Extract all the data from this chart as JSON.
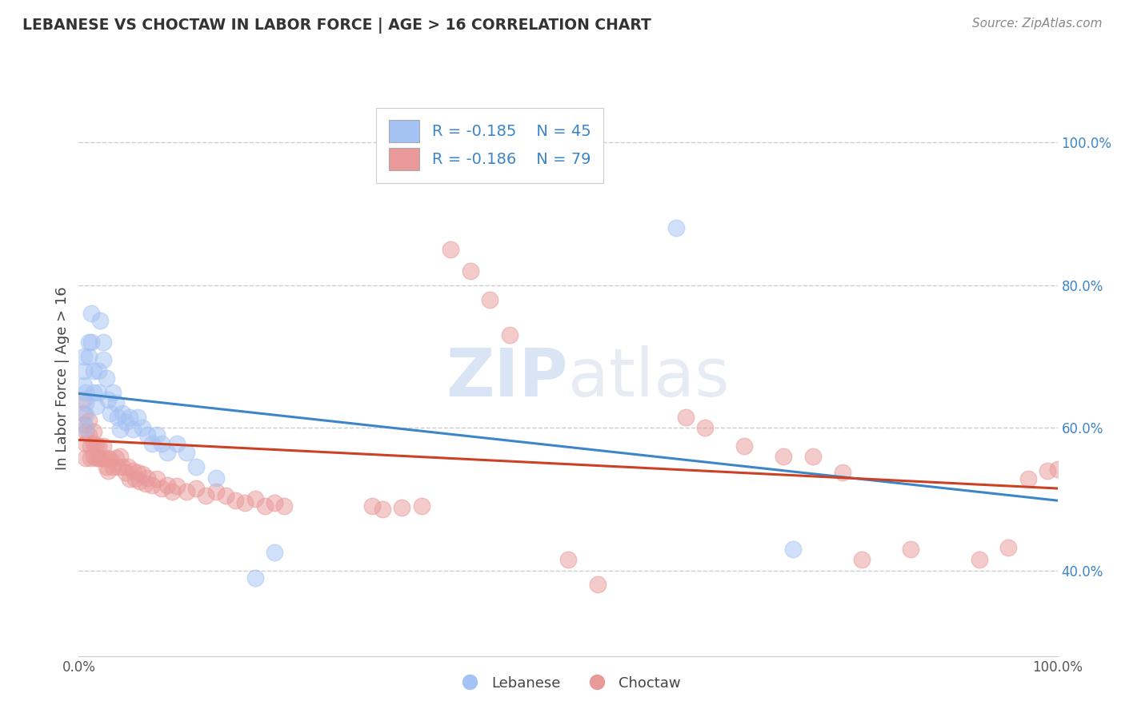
{
  "title": "LEBANESE VS CHOCTAW IN LABOR FORCE | AGE > 16 CORRELATION CHART",
  "source": "Source: ZipAtlas.com",
  "ylabel": "In Labor Force | Age > 16",
  "xlim": [
    0.0,
    1.0
  ],
  "ylim": [
    0.28,
    1.06
  ],
  "y_ticks": [
    0.4,
    0.6,
    0.8,
    1.0
  ],
  "y_tick_labels": [
    "40.0%",
    "60.0%",
    "80.0%",
    "100.0%"
  ],
  "watermark_zip": "ZIP",
  "watermark_atlas": "atlas",
  "legend_blue_label": "R = -0.185    N = 45",
  "legend_pink_label": "R = -0.186    N = 79",
  "blue_color": "#a4c2f4",
  "pink_color": "#ea9999",
  "blue_fill_color": "#a4c2f4",
  "pink_fill_color": "#ea9999",
  "blue_line_color": "#3d85c8",
  "pink_line_color": "#cc4125",
  "title_color": "#333333",
  "source_color": "#888888",
  "grid_color": "#cccccc",
  "background_color": "#ffffff",
  "ytick_color": "#3d85c8",
  "legend_label_blue": "Lebanese",
  "legend_label_pink": "Choctaw",
  "blue_line_y_start": 0.648,
  "blue_line_y_end": 0.498,
  "pink_line_y_start": 0.583,
  "pink_line_y_end": 0.515,
  "blue_points": [
    [
      0.005,
      0.7
    ],
    [
      0.005,
      0.68
    ],
    [
      0.005,
      0.66
    ],
    [
      0.007,
      0.65
    ],
    [
      0.007,
      0.635
    ],
    [
      0.007,
      0.618
    ],
    [
      0.007,
      0.6
    ],
    [
      0.01,
      0.72
    ],
    [
      0.01,
      0.7
    ],
    [
      0.013,
      0.76
    ],
    [
      0.013,
      0.72
    ],
    [
      0.015,
      0.68
    ],
    [
      0.015,
      0.65
    ],
    [
      0.018,
      0.63
    ],
    [
      0.02,
      0.68
    ],
    [
      0.02,
      0.65
    ],
    [
      0.022,
      0.75
    ],
    [
      0.025,
      0.72
    ],
    [
      0.025,
      0.695
    ],
    [
      0.028,
      0.67
    ],
    [
      0.03,
      0.64
    ],
    [
      0.032,
      0.62
    ],
    [
      0.035,
      0.65
    ],
    [
      0.038,
      0.635
    ],
    [
      0.04,
      0.615
    ],
    [
      0.042,
      0.598
    ],
    [
      0.045,
      0.62
    ],
    [
      0.048,
      0.608
    ],
    [
      0.052,
      0.615
    ],
    [
      0.055,
      0.598
    ],
    [
      0.06,
      0.615
    ],
    [
      0.065,
      0.6
    ],
    [
      0.07,
      0.59
    ],
    [
      0.075,
      0.578
    ],
    [
      0.08,
      0.59
    ],
    [
      0.085,
      0.578
    ],
    [
      0.09,
      0.565
    ],
    [
      0.1,
      0.578
    ],
    [
      0.11,
      0.565
    ],
    [
      0.12,
      0.545
    ],
    [
      0.14,
      0.53
    ],
    [
      0.18,
      0.39
    ],
    [
      0.2,
      0.425
    ],
    [
      0.61,
      0.88
    ],
    [
      0.73,
      0.43
    ]
  ],
  "pink_points": [
    [
      0.005,
      0.64
    ],
    [
      0.005,
      0.62
    ],
    [
      0.005,
      0.605
    ],
    [
      0.007,
      0.595
    ],
    [
      0.007,
      0.578
    ],
    [
      0.007,
      0.558
    ],
    [
      0.01,
      0.61
    ],
    [
      0.01,
      0.59
    ],
    [
      0.012,
      0.575
    ],
    [
      0.012,
      0.558
    ],
    [
      0.015,
      0.595
    ],
    [
      0.015,
      0.578
    ],
    [
      0.015,
      0.56
    ],
    [
      0.018,
      0.575
    ],
    [
      0.018,
      0.558
    ],
    [
      0.02,
      0.575
    ],
    [
      0.02,
      0.558
    ],
    [
      0.022,
      0.558
    ],
    [
      0.025,
      0.575
    ],
    [
      0.025,
      0.558
    ],
    [
      0.028,
      0.545
    ],
    [
      0.03,
      0.558
    ],
    [
      0.03,
      0.54
    ],
    [
      0.032,
      0.555
    ],
    [
      0.035,
      0.545
    ],
    [
      0.038,
      0.558
    ],
    [
      0.04,
      0.545
    ],
    [
      0.042,
      0.56
    ],
    [
      0.045,
      0.545
    ],
    [
      0.048,
      0.538
    ],
    [
      0.05,
      0.545
    ],
    [
      0.052,
      0.528
    ],
    [
      0.055,
      0.54
    ],
    [
      0.058,
      0.528
    ],
    [
      0.06,
      0.538
    ],
    [
      0.062,
      0.525
    ],
    [
      0.065,
      0.535
    ],
    [
      0.068,
      0.522
    ],
    [
      0.07,
      0.53
    ],
    [
      0.075,
      0.52
    ],
    [
      0.08,
      0.528
    ],
    [
      0.085,
      0.515
    ],
    [
      0.09,
      0.52
    ],
    [
      0.095,
      0.51
    ],
    [
      0.1,
      0.518
    ],
    [
      0.11,
      0.51
    ],
    [
      0.12,
      0.515
    ],
    [
      0.13,
      0.505
    ],
    [
      0.14,
      0.51
    ],
    [
      0.15,
      0.505
    ],
    [
      0.16,
      0.498
    ],
    [
      0.17,
      0.495
    ],
    [
      0.18,
      0.5
    ],
    [
      0.19,
      0.49
    ],
    [
      0.2,
      0.495
    ],
    [
      0.21,
      0.49
    ],
    [
      0.3,
      0.49
    ],
    [
      0.31,
      0.486
    ],
    [
      0.33,
      0.488
    ],
    [
      0.35,
      0.49
    ],
    [
      0.38,
      0.85
    ],
    [
      0.4,
      0.82
    ],
    [
      0.42,
      0.78
    ],
    [
      0.44,
      0.73
    ],
    [
      0.5,
      0.415
    ],
    [
      0.53,
      0.38
    ],
    [
      0.62,
      0.615
    ],
    [
      0.64,
      0.6
    ],
    [
      0.68,
      0.575
    ],
    [
      0.72,
      0.56
    ],
    [
      0.75,
      0.56
    ],
    [
      0.78,
      0.538
    ],
    [
      0.8,
      0.415
    ],
    [
      0.85,
      0.43
    ],
    [
      0.92,
      0.415
    ],
    [
      0.95,
      0.432
    ],
    [
      0.97,
      0.528
    ],
    [
      0.99,
      0.54
    ],
    [
      1.0,
      0.542
    ]
  ]
}
